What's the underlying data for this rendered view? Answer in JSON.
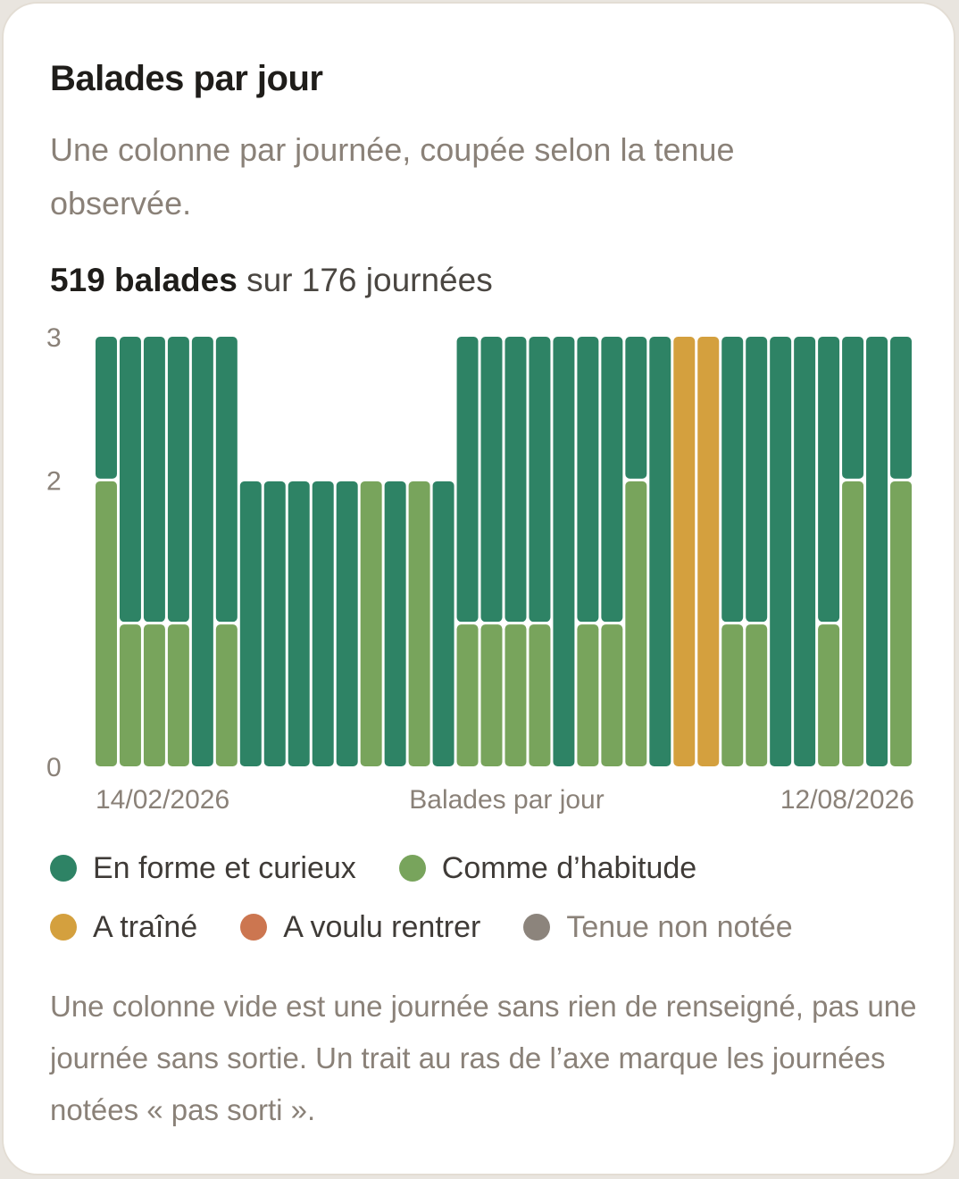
{
  "card": {
    "title": "Balades par jour",
    "subtitle": "Une colonne par journée, coupée selon la tenue observée.",
    "summary_strong": "519 balades",
    "summary_rest": " sur 176 journées",
    "note": "Une colonne vide est une journée sans rien de renseigné, pas une journée sans sortie. Un trait au ras de l’axe marque les journées notées « pas sorti »."
  },
  "legend": [
    {
      "label": "En forme et curieux",
      "color": "#2e8365",
      "key": "forme"
    },
    {
      "label": "Comme d’habitude",
      "color": "#78a45c",
      "key": "habitude"
    },
    {
      "label": "A traîné",
      "color": "#d4a03e",
      "key": "traine"
    },
    {
      "label": "A voulu rentrer",
      "color": "#cc7650",
      "key": "rentrer"
    },
    {
      "label": "Tenue non notée",
      "color": "#8c847c",
      "key": "nonnotee"
    }
  ],
  "chart_data": {
    "type": "bar",
    "stacked": true,
    "title": "Balades par jour",
    "xlabel": "Balades par jour",
    "ylabel": "",
    "x_tick_labels": [
      "14/02/2026",
      "12/08/2026"
    ],
    "y_ticks": [
      0,
      2,
      3
    ],
    "ylim": [
      0,
      3
    ],
    "columns": [
      {
        "habitude": 2,
        "forme": 1
      },
      {
        "habitude": 1,
        "forme": 2
      },
      {
        "habitude": 1,
        "forme": 2
      },
      {
        "habitude": 1,
        "forme": 2
      },
      {
        "forme": 3
      },
      {
        "habitude": 1,
        "forme": 2
      },
      {
        "forme": 2
      },
      {
        "forme": 2
      },
      {
        "forme": 2
      },
      {
        "forme": 2
      },
      {
        "forme": 2
      },
      {
        "habitude": 2
      },
      {
        "forme": 2
      },
      {
        "habitude": 2
      },
      {
        "forme": 2
      },
      {
        "habitude": 1,
        "forme": 2
      },
      {
        "habitude": 1,
        "forme": 2
      },
      {
        "habitude": 1,
        "forme": 2
      },
      {
        "habitude": 1,
        "forme": 2
      },
      {
        "forme": 3
      },
      {
        "habitude": 1,
        "forme": 2
      },
      {
        "habitude": 1,
        "forme": 2
      },
      {
        "habitude": 2,
        "forme": 1
      },
      {
        "forme": 3
      },
      {
        "traine": 3
      },
      {
        "traine": 3
      },
      {
        "habitude": 1,
        "forme": 2
      },
      {
        "habitude": 1,
        "forme": 2
      },
      {
        "forme": 3
      },
      {
        "forme": 3
      },
      {
        "habitude": 1,
        "forme": 2
      },
      {
        "habitude": 2,
        "forme": 1
      },
      {
        "forme": 3
      },
      {
        "habitude": 2,
        "forme": 1
      }
    ]
  }
}
